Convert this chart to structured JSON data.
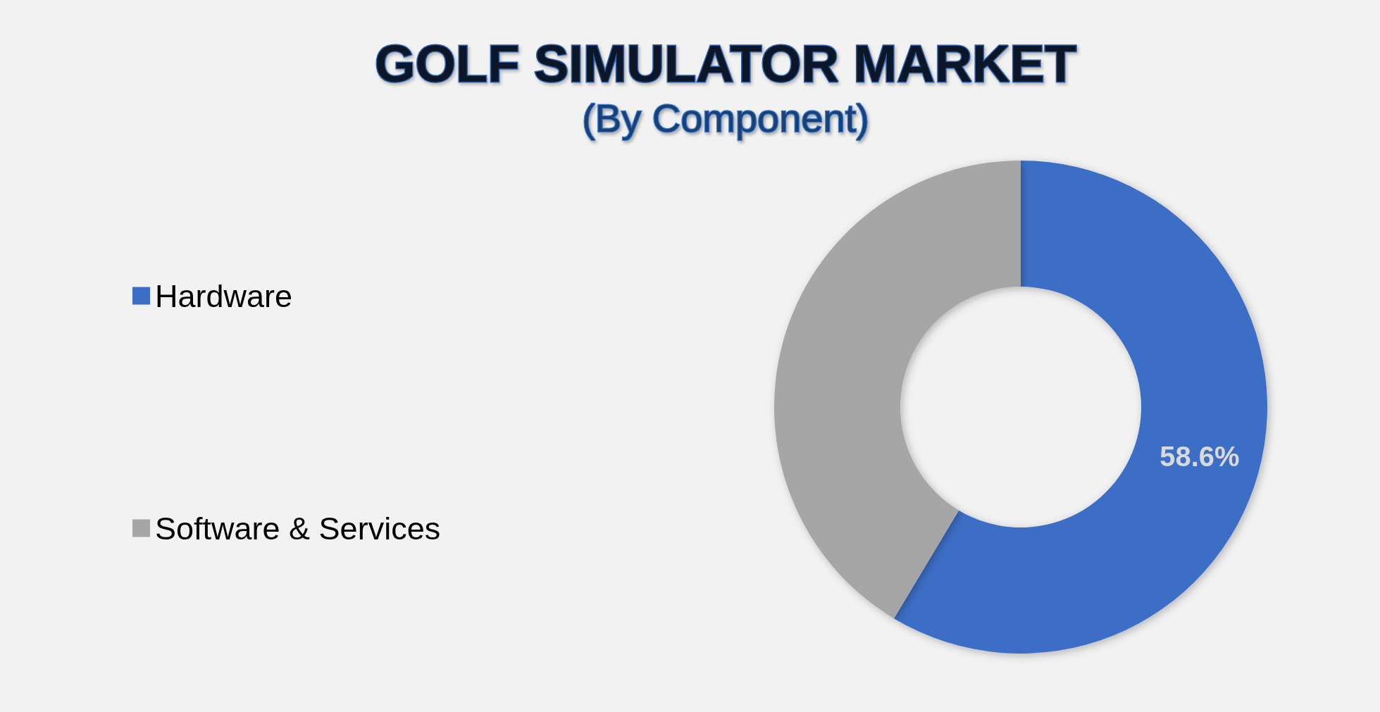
{
  "chart_data": {
    "type": "donut",
    "title": "GOLF SIMULATOR MARKET",
    "subtitle": "(By Component)",
    "categories": [
      "Hardware",
      "Software & Services"
    ],
    "values": [
      58.6,
      41.4
    ],
    "colors": [
      "#3d6ec6",
      "#a6a6a6"
    ],
    "value_labels": [
      "58.6%",
      null
    ],
    "legend": "left"
  }
}
